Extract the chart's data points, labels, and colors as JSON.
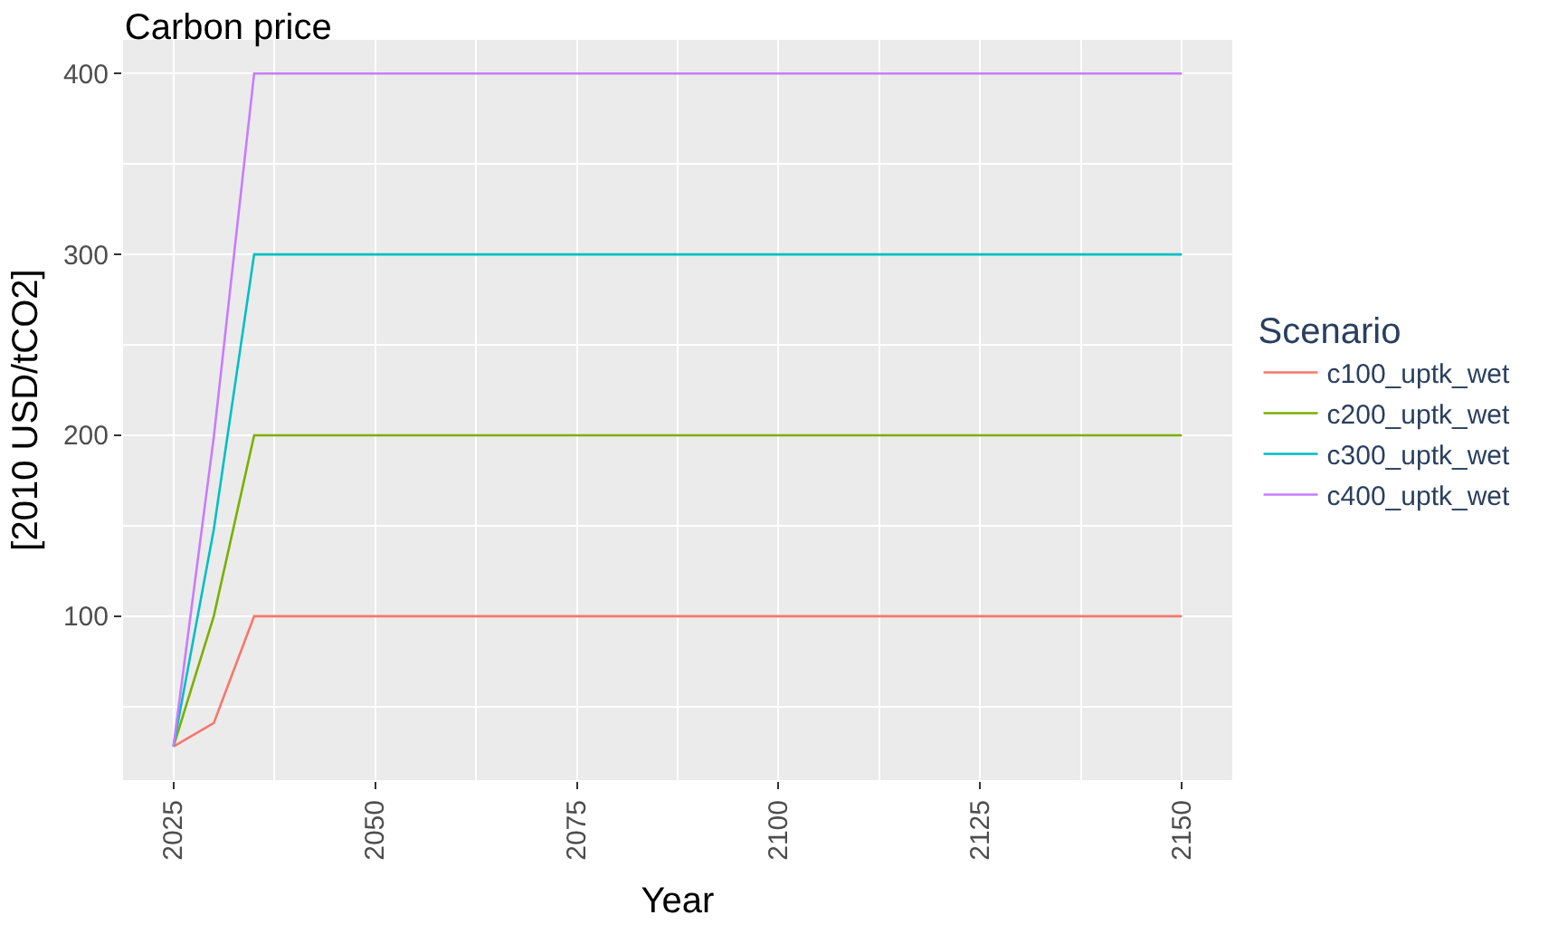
{
  "chart_data": {
    "type": "line",
    "title": "Carbon price",
    "xlabel": "Year",
    "ylabel": "[2010 USD/tCO2]",
    "legend_title": "Scenario",
    "x": [
      2025,
      2030,
      2035,
      2150
    ],
    "series": [
      {
        "name": "c100_uptk_wet",
        "color": "#f8766d",
        "values": [
          28,
          41,
          100,
          100
        ]
      },
      {
        "name": "c200_uptk_wet",
        "color": "#7cae00",
        "values": [
          28,
          100,
          200,
          200
        ]
      },
      {
        "name": "c300_uptk_wet",
        "color": "#00bfc4",
        "values": [
          28,
          148,
          300,
          300
        ]
      },
      {
        "name": "c400_uptk_wet",
        "color": "#c77cff",
        "values": [
          28,
          199,
          400,
          400
        ]
      }
    ],
    "xlim": [
      2018.75,
      2156.25
    ],
    "xticks": [
      2025,
      2050,
      2075,
      2100,
      2125,
      2150
    ],
    "ylim": [
      9.4,
      418.6
    ],
    "yticks": [
      100,
      200,
      300,
      400
    ],
    "grid": true,
    "legend": "right",
    "marker": "none",
    "line_style": "solid"
  }
}
